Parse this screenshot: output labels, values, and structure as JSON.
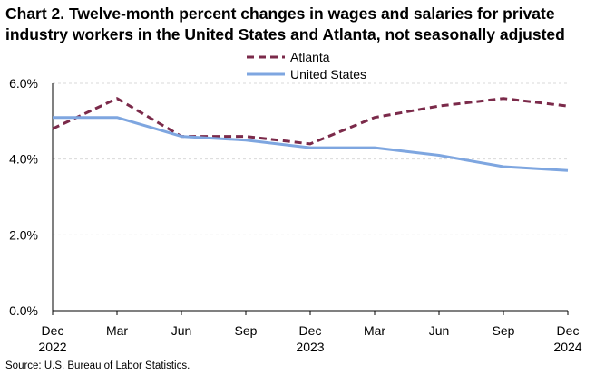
{
  "chart_data": {
    "type": "line",
    "title_lines": [
      "Chart 2. Twelve-month percent changes in wages and salaries for private",
      "industry workers in the United States and Atlanta, not seasonally adjusted"
    ],
    "categories": [
      {
        "month": "Dec",
        "year": "2022"
      },
      {
        "month": "Mar",
        "year": ""
      },
      {
        "month": "Jun",
        "year": ""
      },
      {
        "month": "Sep",
        "year": ""
      },
      {
        "month": "Dec",
        "year": "2023"
      },
      {
        "month": "Mar",
        "year": ""
      },
      {
        "month": "Jun",
        "year": ""
      },
      {
        "month": "Sep",
        "year": ""
      },
      {
        "month": "Dec",
        "year": "2024"
      }
    ],
    "series": [
      {
        "name": "Atlanta",
        "color": "#7b2a4a",
        "style": "dashed",
        "values": [
          4.8,
          5.6,
          4.6,
          4.6,
          4.4,
          5.1,
          5.4,
          5.6,
          5.4
        ]
      },
      {
        "name": "United States",
        "color": "#7ea6e0",
        "style": "solid",
        "values": [
          5.1,
          5.1,
          4.6,
          4.5,
          4.3,
          4.3,
          4.1,
          3.8,
          3.7
        ]
      }
    ],
    "yticks": [
      {
        "value": 0,
        "label": "0.0%"
      },
      {
        "value": 2,
        "label": "2.0%"
      },
      {
        "value": 4,
        "label": "4.0%"
      },
      {
        "value": 6,
        "label": "6.0%"
      }
    ],
    "ylim": [
      0,
      6
    ],
    "grid": true,
    "legend_position": "top-center"
  },
  "source": "Source: U.S. Bureau of Labor Statistics."
}
